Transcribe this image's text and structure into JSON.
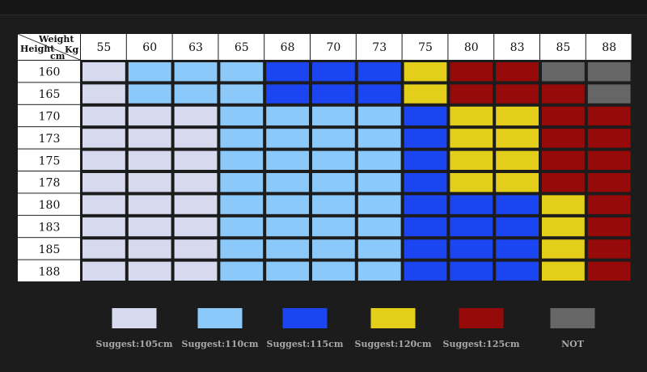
{
  "chart_data": {
    "type": "heatmap",
    "corner": {
      "top": "Weight",
      "left": "Height",
      "unit_top": "Kg",
      "unit_left": "cm"
    },
    "weights": [
      "55",
      "60",
      "63",
      "65",
      "68",
      "70",
      "73",
      "75",
      "80",
      "83",
      "85",
      "88"
    ],
    "heights": [
      "160",
      "165",
      "170",
      "173",
      "175",
      "178",
      "180",
      "183",
      "185",
      "188"
    ],
    "matrix": [
      [
        "105",
        "110",
        "110",
        "110",
        "115",
        "115",
        "115",
        "120",
        "125",
        "125",
        "NOT",
        "NOT"
      ],
      [
        "105",
        "110",
        "110",
        "110",
        "115",
        "115",
        "115",
        "120",
        "125",
        "125",
        "125",
        "NOT"
      ],
      [
        "105",
        "105",
        "105",
        "110",
        "110",
        "110",
        "110",
        "115",
        "120",
        "120",
        "125",
        "125"
      ],
      [
        "105",
        "105",
        "105",
        "110",
        "110",
        "110",
        "110",
        "115",
        "120",
        "120",
        "125",
        "125"
      ],
      [
        "105",
        "105",
        "105",
        "110",
        "110",
        "110",
        "110",
        "115",
        "120",
        "120",
        "125",
        "125"
      ],
      [
        "105",
        "105",
        "105",
        "110",
        "110",
        "110",
        "110",
        "115",
        "120",
        "120",
        "125",
        "125"
      ],
      [
        "105",
        "105",
        "105",
        "110",
        "110",
        "110",
        "110",
        "115",
        "115",
        "115",
        "120",
        "125"
      ],
      [
        "105",
        "105",
        "105",
        "110",
        "110",
        "110",
        "110",
        "115",
        "115",
        "115",
        "120",
        "125"
      ],
      [
        "105",
        "105",
        "105",
        "110",
        "110",
        "110",
        "110",
        "115",
        "115",
        "115",
        "120",
        "125"
      ],
      [
        "105",
        "105",
        "105",
        "110",
        "110",
        "110",
        "110",
        "115",
        "115",
        "115",
        "120",
        "125"
      ]
    ],
    "legend": [
      {
        "key": "105",
        "label": "Suggest:105cm",
        "color": "#d7d9ef"
      },
      {
        "key": "110",
        "label": "Suggest:110cm",
        "color": "#8cc9fb"
      },
      {
        "key": "115",
        "label": "Suggest:115cm",
        "color": "#1a45f0"
      },
      {
        "key": "120",
        "label": "Suggest:120cm",
        "color": "#e3cf1a"
      },
      {
        "key": "125",
        "label": "Suggest:125cm",
        "color": "#970a0a"
      },
      {
        "key": "NOT",
        "label": "NOT",
        "color": "#666666"
      }
    ],
    "colors": {
      "header_bg": "#ffffff",
      "header_text": "#111111",
      "grid_bg": "#1c1c1c",
      "legend_text": "#a8a8a8"
    }
  }
}
